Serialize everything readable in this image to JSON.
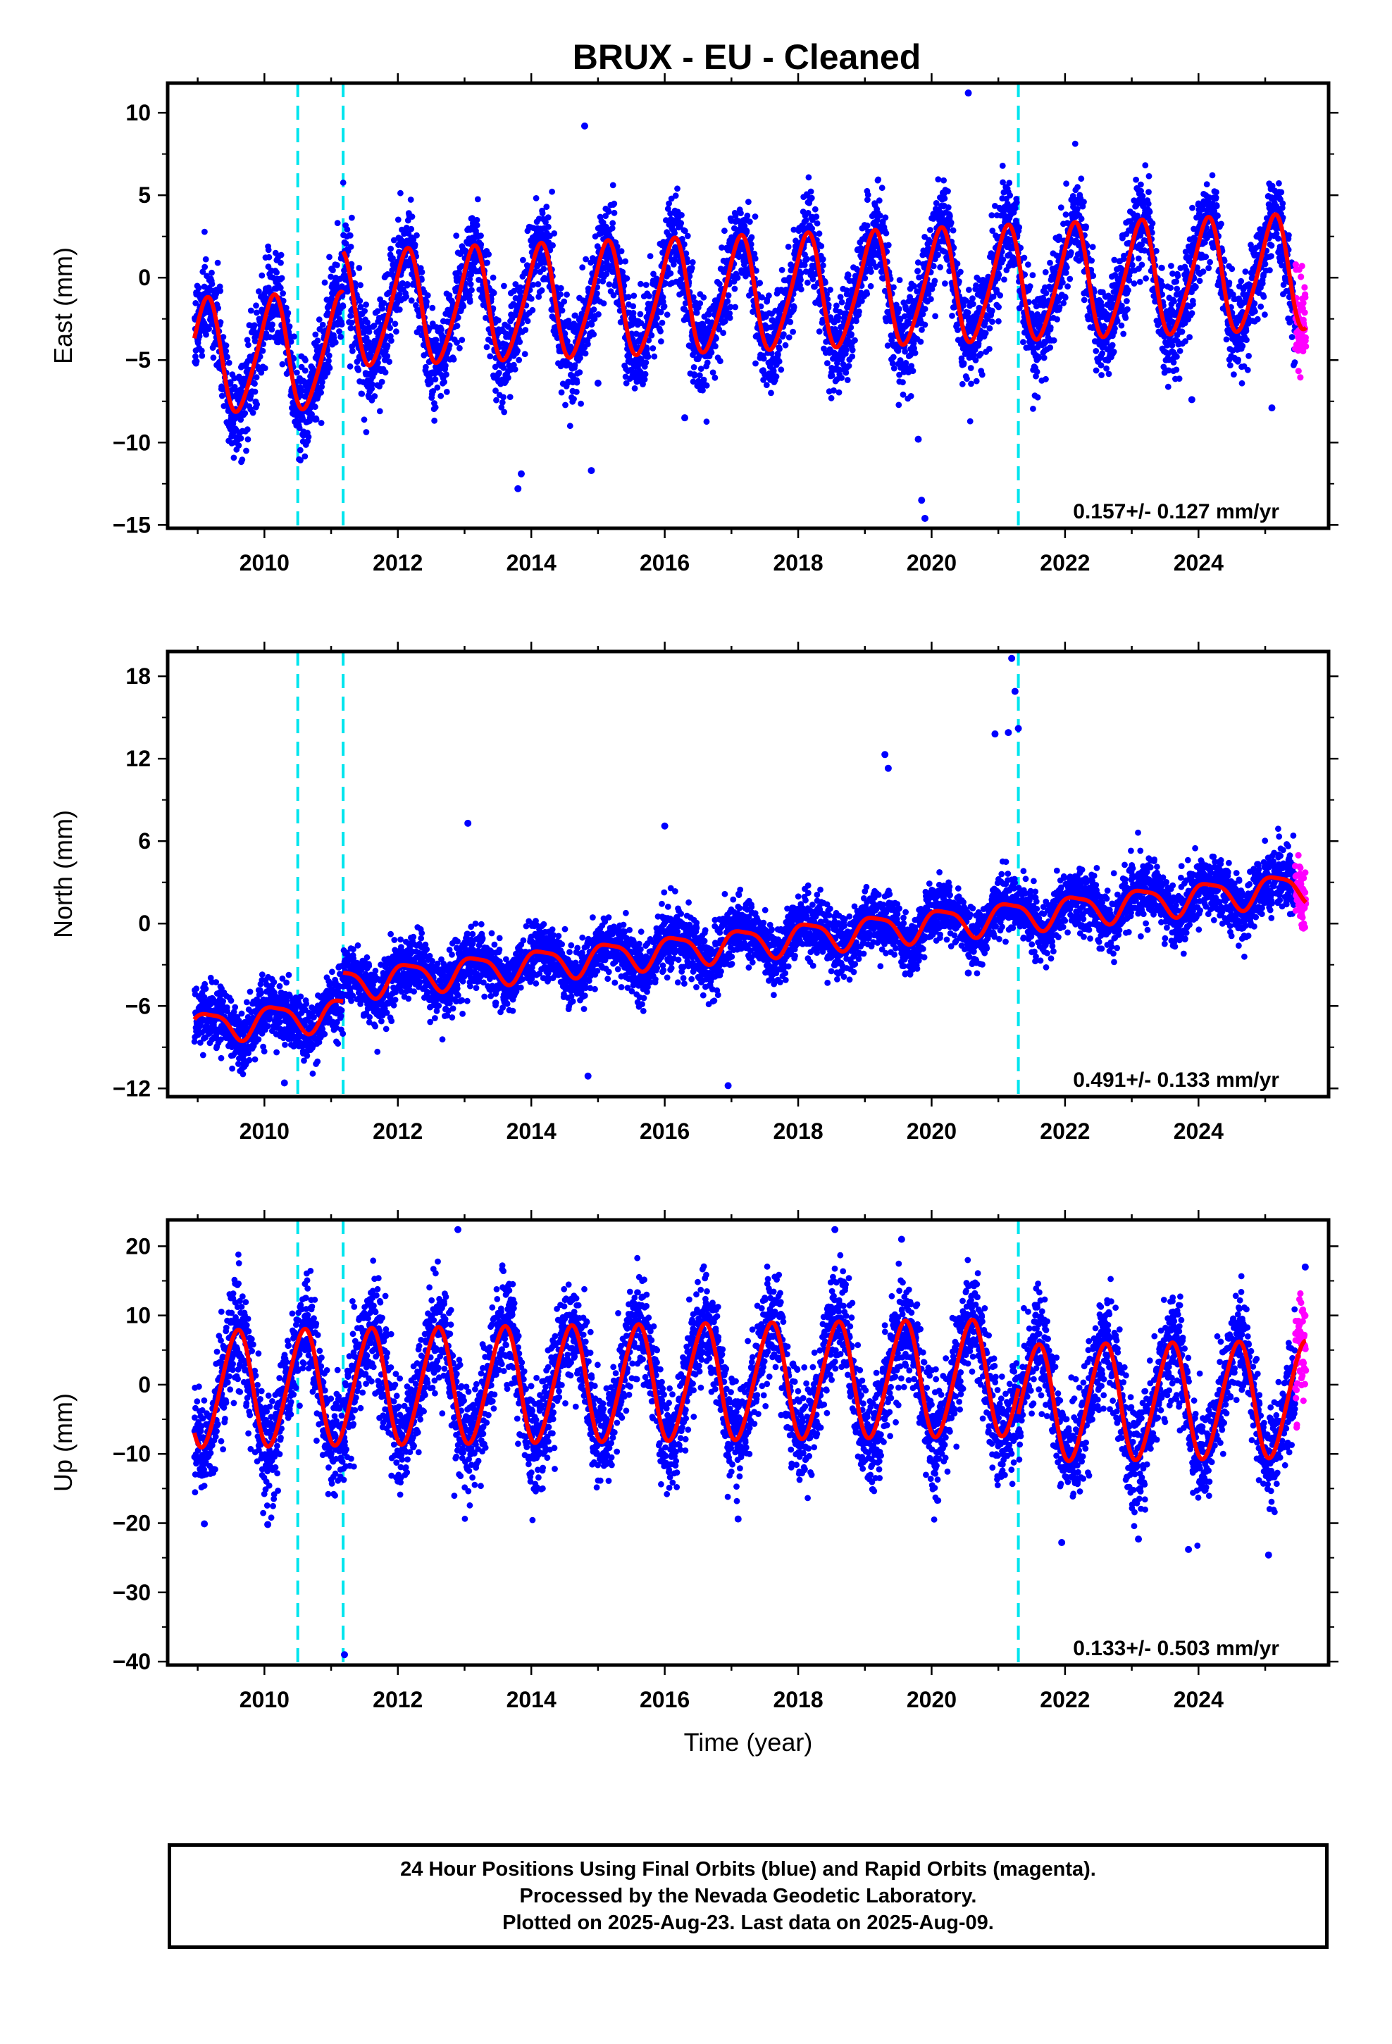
{
  "title": "BRUX  - EU - Cleaned",
  "colors": {
    "final_orbits": "#0000ff",
    "rapid_orbits": "#ff00ff",
    "model_fit": "#ff0000",
    "equipment_change": "#00e5ee"
  },
  "footer": {
    "line1": "24 Hour Positions Using Final Orbits (blue) and Rapid Orbits (magenta).",
    "line2": "Processed by the Nevada Geodetic Laboratory.",
    "line3": "Plotted on 2025-Aug-23. Last data on 2025-Aug-09."
  },
  "chart_data": [
    {
      "type": "scatter",
      "component": "East",
      "ylabel": "East (mm)",
      "xlabel": "",
      "xlim": [
        2008.55,
        2025.95
      ],
      "ylim": [
        -15.2,
        11.8
      ],
      "xticks": [
        2010,
        2012,
        2014,
        2016,
        2018,
        2020,
        2022,
        2024
      ],
      "yticks": [
        -15,
        -10,
        -5,
        0,
        5,
        10
      ],
      "ytick_labels": [
        "−15",
        "−10",
        "−5",
        "0",
        "5",
        "10"
      ],
      "rate_label": "0.157+/- 0.127 mm/yr",
      "data_range": [
        2008.95,
        2025.6
      ],
      "rapid_range": [
        2025.45,
        2025.61
      ],
      "discontinuities": [
        2010.5,
        2011.18,
        2021.3
      ],
      "model": {
        "segments": [
          {
            "start": 2008.95,
            "end": 2011.18,
            "offset": -3.6,
            "trend": 0.157
          },
          {
            "start": 2011.18,
            "end": 2025.61,
            "offset": -1.1,
            "trend": 0.157
          }
        ],
        "annual_cos": 2.5,
        "annual_sin": 2.3,
        "semi_cos": -0.45,
        "semi_sin": 0.2
      },
      "scatter_sd": 1.4,
      "outliers": [
        [
          2014.8,
          9.2
        ],
        [
          2020.55,
          11.2
        ],
        [
          2013.8,
          -12.8
        ],
        [
          2013.85,
          -11.9
        ],
        [
          2019.9,
          -14.6
        ],
        [
          2019.85,
          -13.5
        ],
        [
          2019.8,
          -9.8
        ],
        [
          2014.9,
          -11.7
        ],
        [
          2023.9,
          -7.4
        ],
        [
          2025.1,
          -7.9
        ],
        [
          2016.3,
          -8.5
        ],
        [
          2015.0,
          -6.4
        ]
      ]
    },
    {
      "type": "scatter",
      "component": "North",
      "ylabel": "North (mm)",
      "xlabel": "",
      "xlim": [
        2008.55,
        2025.95
      ],
      "ylim": [
        -12.6,
        19.8
      ],
      "xticks": [
        2010,
        2012,
        2014,
        2016,
        2018,
        2020,
        2022,
        2024
      ],
      "yticks": [
        -12,
        -6,
        0,
        6,
        12,
        18
      ],
      "ytick_labels": [
        "−12",
        "−6",
        "0",
        "6",
        "12",
        "18"
      ],
      "rate_label": "0.491+/- 0.133 mm/yr",
      "data_range": [
        2008.95,
        2025.6
      ],
      "rapid_range": [
        2025.45,
        2025.61
      ],
      "discontinuities": [
        2010.5,
        2011.18,
        2021.3
      ],
      "model": {
        "segments": [
          {
            "start": 2008.95,
            "end": 2011.18,
            "offset": -3.6,
            "trend": 0.491
          },
          {
            "start": 2011.18,
            "end": 2025.61,
            "offset": -1.5,
            "trend": 0.491
          }
        ],
        "annual_cos": 0.6,
        "annual_sin": 0.9,
        "semi_cos": 0.2,
        "semi_sin": -0.2
      },
      "scatter_sd": 1.1,
      "outliers": [
        [
          2021.2,
          19.3
        ],
        [
          2021.25,
          16.9
        ],
        [
          2021.15,
          13.9
        ],
        [
          2020.95,
          13.8
        ],
        [
          2021.3,
          14.2
        ],
        [
          2019.3,
          12.3
        ],
        [
          2019.35,
          11.3
        ],
        [
          2013.05,
          7.3
        ],
        [
          2016.0,
          7.1
        ],
        [
          2020.55,
          -3.6
        ],
        [
          2014.85,
          -11.1
        ],
        [
          2016.95,
          -11.8
        ],
        [
          2010.3,
          -11.6
        ]
      ]
    },
    {
      "type": "scatter",
      "component": "Up",
      "ylabel": "Up (mm)",
      "xlabel": "Time (year)",
      "xlim": [
        2008.55,
        2025.95
      ],
      "ylim": [
        -40.5,
        23.8
      ],
      "xticks": [
        2010,
        2012,
        2014,
        2016,
        2018,
        2020,
        2022,
        2024
      ],
      "yticks": [
        -40,
        -30,
        -20,
        -10,
        0,
        10,
        20
      ],
      "ytick_labels": [
        "−40",
        "−30",
        "−20",
        "−10",
        "0",
        "10",
        "20"
      ],
      "rate_label": "0.133+/- 0.503 mm/yr",
      "data_range": [
        2008.95,
        2025.6
      ],
      "rapid_range": [
        2025.45,
        2025.61
      ],
      "discontinuities": [
        2010.5,
        2011.18,
        2021.3
      ],
      "model": {
        "segments": [
          {
            "start": 2008.95,
            "end": 2021.3,
            "offset": 0.4,
            "trend": 0.133
          },
          {
            "start": 2021.3,
            "end": 2025.61,
            "offset": -3.3,
            "trend": 0.133
          }
        ],
        "annual_cos": -7.2,
        "annual_sin": -4.2,
        "semi_cos": -0.6,
        "semi_sin": 0.4
      },
      "scatter_sd": 3.8,
      "outliers": [
        [
          2011.2,
          -39.0
        ],
        [
          2012.9,
          22.4
        ],
        [
          2018.55,
          22.4
        ],
        [
          2019.55,
          21.0
        ],
        [
          2025.6,
          17.0
        ],
        [
          2023.85,
          -23.8
        ],
        [
          2025.05,
          -24.6
        ],
        [
          2021.95,
          -22.8
        ],
        [
          2023.1,
          -22.3
        ],
        [
          2009.1,
          -20.1
        ],
        [
          2010.05,
          -20.2
        ],
        [
          2017.1,
          -19.4
        ]
      ]
    }
  ]
}
